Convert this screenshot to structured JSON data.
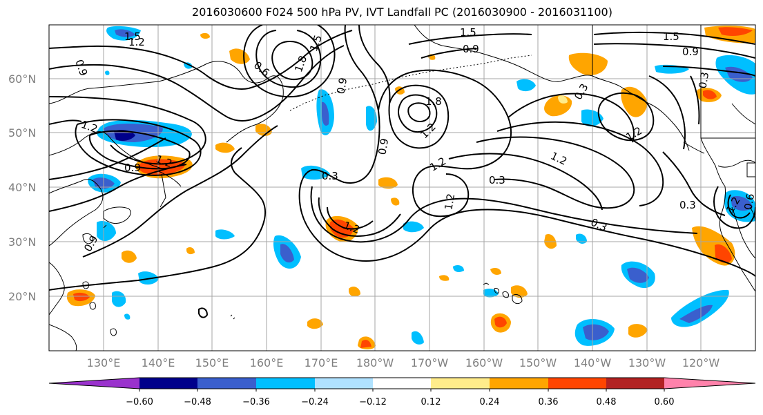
{
  "title": "2016030600 F024 500 hPa PV, IVT Landfall PC (2016030900 - 2016031100)",
  "lat_labels": [
    "60°N",
    "50°N",
    "40°N",
    "30°N",
    "20°N"
  ],
  "lon_labels": [
    "130°E",
    "140°E",
    "150°E",
    "160°E",
    "170°E",
    "180°W",
    "170°W",
    "160°W",
    "150°W",
    "140°W",
    "130°W",
    "120°W"
  ],
  "contour_labels": [
    "1.5",
    "1.2",
    "0.9",
    "0.6",
    "1.8",
    "1.5",
    "0.9",
    "1.8",
    "1.2",
    "0.9",
    "1.2",
    "0.9",
    "1.2",
    "0.3",
    "1.2",
    "0.9",
    "1.2",
    "1.2",
    "0.3",
    "1.2",
    "1.2",
    "0.3",
    "1.5",
    "0.9",
    "0.3",
    "1.2",
    "0.3",
    "0.6",
    "0.3",
    "0.9",
    "1.5"
  ],
  "colorbar": {
    "ticks": [
      "−0.60",
      "−0.48",
      "−0.36",
      "−0.24",
      "−0.12",
      "0.12",
      "0.24",
      "0.36",
      "0.48",
      "0.60"
    ],
    "colors": [
      "#9a32cd",
      "#00008b",
      "#3a5fcd",
      "#00bfff",
      "#b0e2ff",
      "#ffffff",
      "#ffec8b",
      "#ffa500",
      "#ff4500",
      "#b22222",
      "#ff82ab"
    ]
  }
}
